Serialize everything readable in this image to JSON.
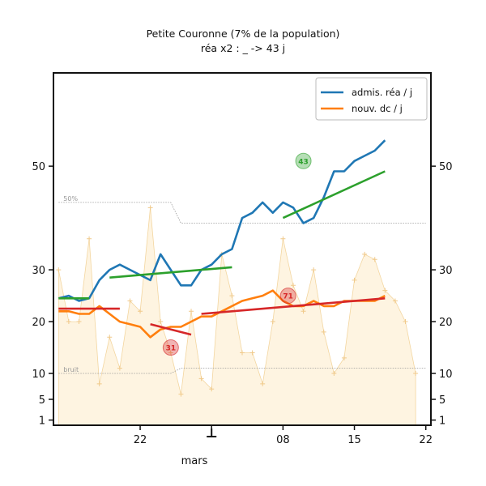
{
  "chart_data": {
    "type": "line",
    "title": "Petite Couronne (7% de la population)",
    "subtitle": "réa x2 : _ -> 43 j",
    "xlabel": "mars",
    "x_tick_labels": [
      "22",
      "1",
      "08",
      "15",
      "22"
    ],
    "x_tick_days": [
      22,
      29,
      36,
      43,
      50
    ],
    "y_ticks": [
      1,
      5,
      10,
      20,
      30,
      50
    ],
    "y_tick_labels": [
      "1",
      "5",
      "10",
      "20",
      "30",
      "50"
    ],
    "ylim": [
      0,
      68
    ],
    "xlim": [
      13.5,
      50.5
    ],
    "legend_position": "top-right",
    "series": [
      {
        "name": "admis. réa / j",
        "color": "#1f77b4",
        "x": [
          14,
          15,
          16,
          17,
          18,
          19,
          20,
          21,
          22,
          23,
          24,
          25,
          26,
          27,
          28,
          29,
          30,
          31,
          32,
          33,
          34,
          35,
          36,
          37,
          38,
          39,
          40,
          41,
          42,
          43,
          44,
          45,
          46
        ],
        "values": [
          24.5,
          25,
          24,
          24.5,
          28,
          30,
          31,
          30,
          29,
          28,
          33,
          30,
          27,
          27,
          30,
          31,
          33,
          34,
          40,
          41,
          43,
          41,
          43,
          42,
          39,
          40,
          44,
          49,
          49,
          51,
          52,
          53,
          55
        ]
      },
      {
        "name": "nouv. dc / j",
        "color": "#ff7f0e",
        "x": [
          14,
          15,
          16,
          17,
          18,
          19,
          20,
          21,
          22,
          23,
          24,
          25,
          26,
          27,
          28,
          29,
          30,
          31,
          32,
          33,
          34,
          35,
          36,
          37,
          38,
          39,
          40,
          41,
          42,
          43,
          44,
          45,
          46
        ],
        "values": [
          22,
          22,
          21.5,
          21.5,
          23,
          21.5,
          20,
          19.5,
          19,
          17,
          18.5,
          19,
          19,
          20,
          21,
          21,
          22,
          23,
          24,
          24.5,
          25,
          26,
          24,
          23,
          23,
          24,
          23,
          23,
          24,
          24,
          24,
          24,
          25
        ]
      }
    ],
    "trend_lines": [
      {
        "color": "#2ca02c",
        "x": [
          14,
          17
        ],
        "values": [
          24.5,
          24.5
        ]
      },
      {
        "color": "#2ca02c",
        "x": [
          19,
          31
        ],
        "values": [
          28.5,
          30.5
        ]
      },
      {
        "color": "#2ca02c",
        "x": [
          36,
          46
        ],
        "values": [
          40,
          49
        ]
      },
      {
        "color": "#d62728",
        "x": [
          14,
          20
        ],
        "values": [
          22.5,
          22.5
        ]
      },
      {
        "color": "#d62728",
        "x": [
          23,
          27
        ],
        "values": [
          19.5,
          17.5
        ]
      },
      {
        "color": "#d62728",
        "x": [
          28,
          46
        ],
        "values": [
          21.5,
          24.5
        ]
      }
    ],
    "background_area": {
      "color": "#fdebc8",
      "x": [
        14,
        15,
        16,
        17,
        18,
        19,
        20,
        21,
        22,
        23,
        24,
        25,
        26,
        27,
        28,
        29,
        30,
        31,
        32,
        33,
        34,
        35,
        36,
        37,
        38,
        39,
        40,
        41,
        42,
        43,
        44,
        45,
        46,
        47,
        48,
        49
      ],
      "values": [
        30,
        20,
        20,
        36,
        8,
        17,
        11,
        24,
        22,
        42,
        20,
        14,
        6,
        22,
        9,
        7,
        33,
        25,
        14,
        14,
        8,
        20,
        36,
        27,
        22,
        30,
        18,
        10,
        13,
        28,
        33,
        32,
        26,
        24,
        20,
        10
      ]
    },
    "reference_lines": [
      {
        "label": "50%",
        "x": [
          14,
          25,
          26,
          50
        ],
        "values": [
          43,
          43,
          39,
          39
        ]
      },
      {
        "label": "bruit",
        "x": [
          14,
          25,
          26,
          50
        ],
        "values": [
          10,
          10,
          11,
          11
        ]
      }
    ],
    "badges": [
      {
        "text": "43",
        "color": "#2ca02c",
        "x": 38,
        "y": 51
      },
      {
        "text": "71",
        "color": "#d62728",
        "x": 36.5,
        "y": 25
      },
      {
        "text": "31",
        "color": "#d62728",
        "x": 25,
        "y": 15
      }
    ]
  }
}
